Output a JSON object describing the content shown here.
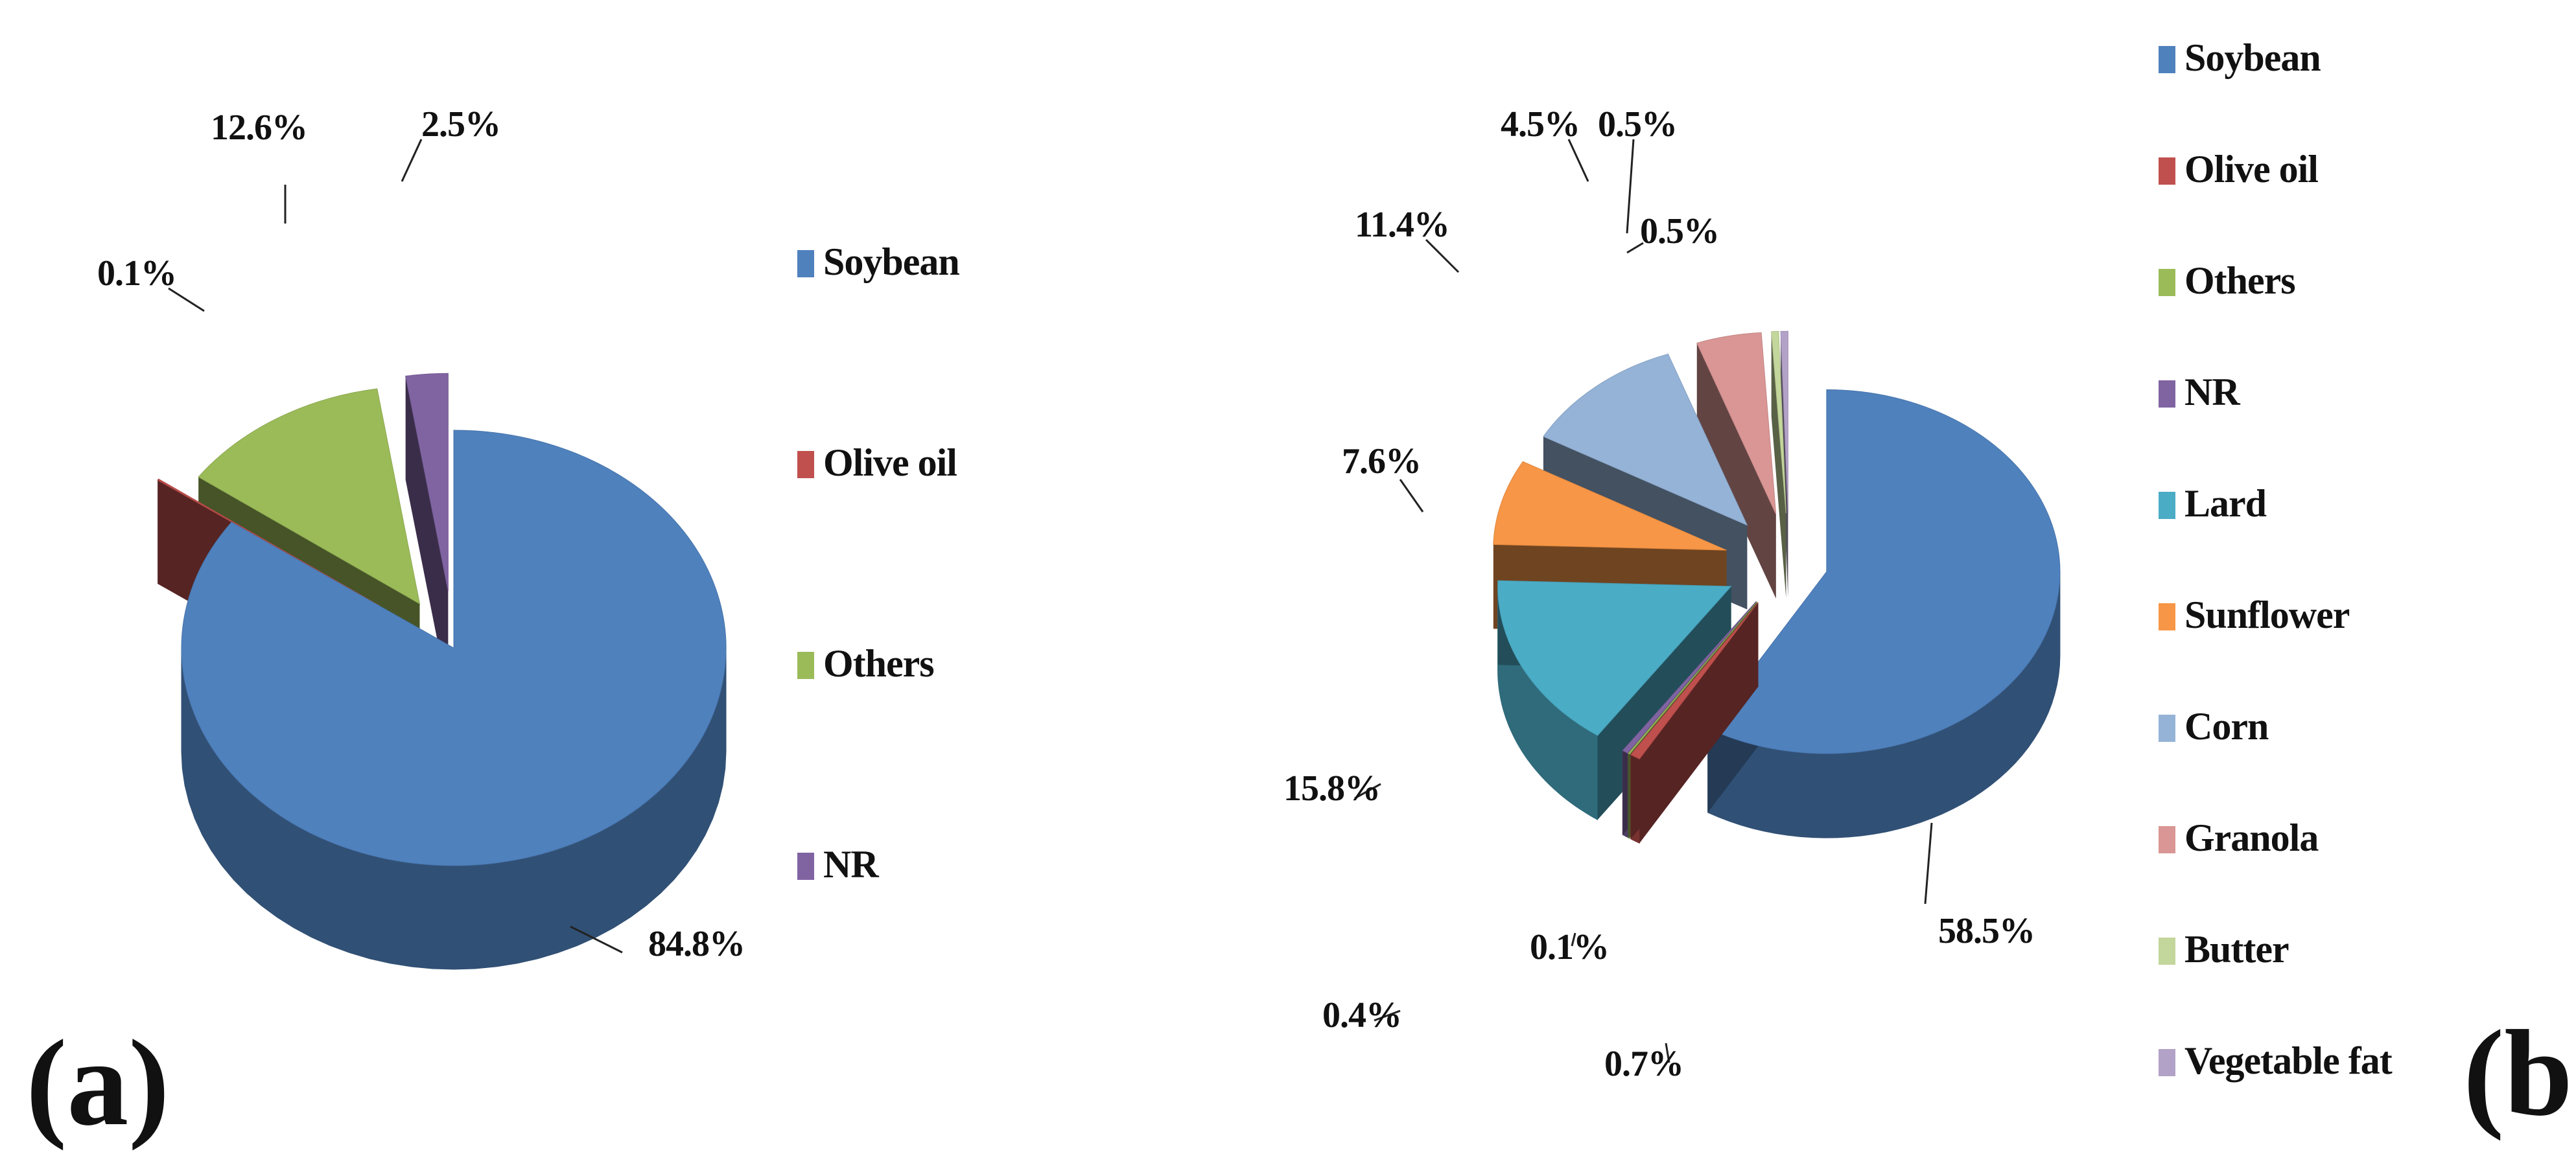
{
  "chart_data": [
    {
      "type": "pie",
      "panel_label": "(a)",
      "start_angle": 0,
      "slices": [
        {
          "name": "Soybean",
          "value": 84.8,
          "label": "84.8%",
          "color": "#4F81BD"
        },
        {
          "name": "Olive oil",
          "value": 0.1,
          "label": "0.1%",
          "color": "#C0504D"
        },
        {
          "name": "Others",
          "value": 12.6,
          "label": "12.6%",
          "color": "#9BBB59"
        },
        {
          "name": "NR",
          "value": 2.5,
          "label": "2.5%",
          "color": "#8064A2"
        }
      ],
      "legend": [
        "Soybean",
        "Olive oil",
        "Others",
        "NR"
      ],
      "legend_position": "right"
    },
    {
      "type": "pie",
      "panel_label": "(b)",
      "start_angle": 0,
      "slices": [
        {
          "name": "Soybean",
          "value": 58.5,
          "label": "58.5%",
          "color": "#4F81BD"
        },
        {
          "name": "Olive oil",
          "value": 0.7,
          "label": "0.7%",
          "color": "#C0504D"
        },
        {
          "name": "Others",
          "value": 0.1,
          "label": "0.1%",
          "color": "#9BBB59"
        },
        {
          "name": "NR",
          "value": 0.4,
          "label": "0.4%",
          "color": "#8064A2"
        },
        {
          "name": "Lard",
          "value": 15.8,
          "label": "15.8%",
          "color": "#4BACC6"
        },
        {
          "name": "Sunflower",
          "value": 7.6,
          "label": "7.6%",
          "color": "#F79646"
        },
        {
          "name": "Corn",
          "value": 11.4,
          "label": "11.4%",
          "color": "#95B3D7"
        },
        {
          "name": "Granola",
          "value": 4.5,
          "label": "4.5%",
          "color": "#D99694"
        },
        {
          "name": "Butter",
          "value": 0.5,
          "label": "0.5%",
          "color": "#C3D69B"
        },
        {
          "name": "Vegetable fat",
          "value": 0.5,
          "label": "0.5%",
          "color": "#B3A2C7"
        }
      ],
      "legend": [
        "Soybean",
        "Olive oil",
        "Others",
        "NR",
        "Lard",
        "Sunflower",
        "Corn",
        "Granola",
        "Butter",
        "Vegetable fat"
      ],
      "legend_position": "right"
    }
  ]
}
